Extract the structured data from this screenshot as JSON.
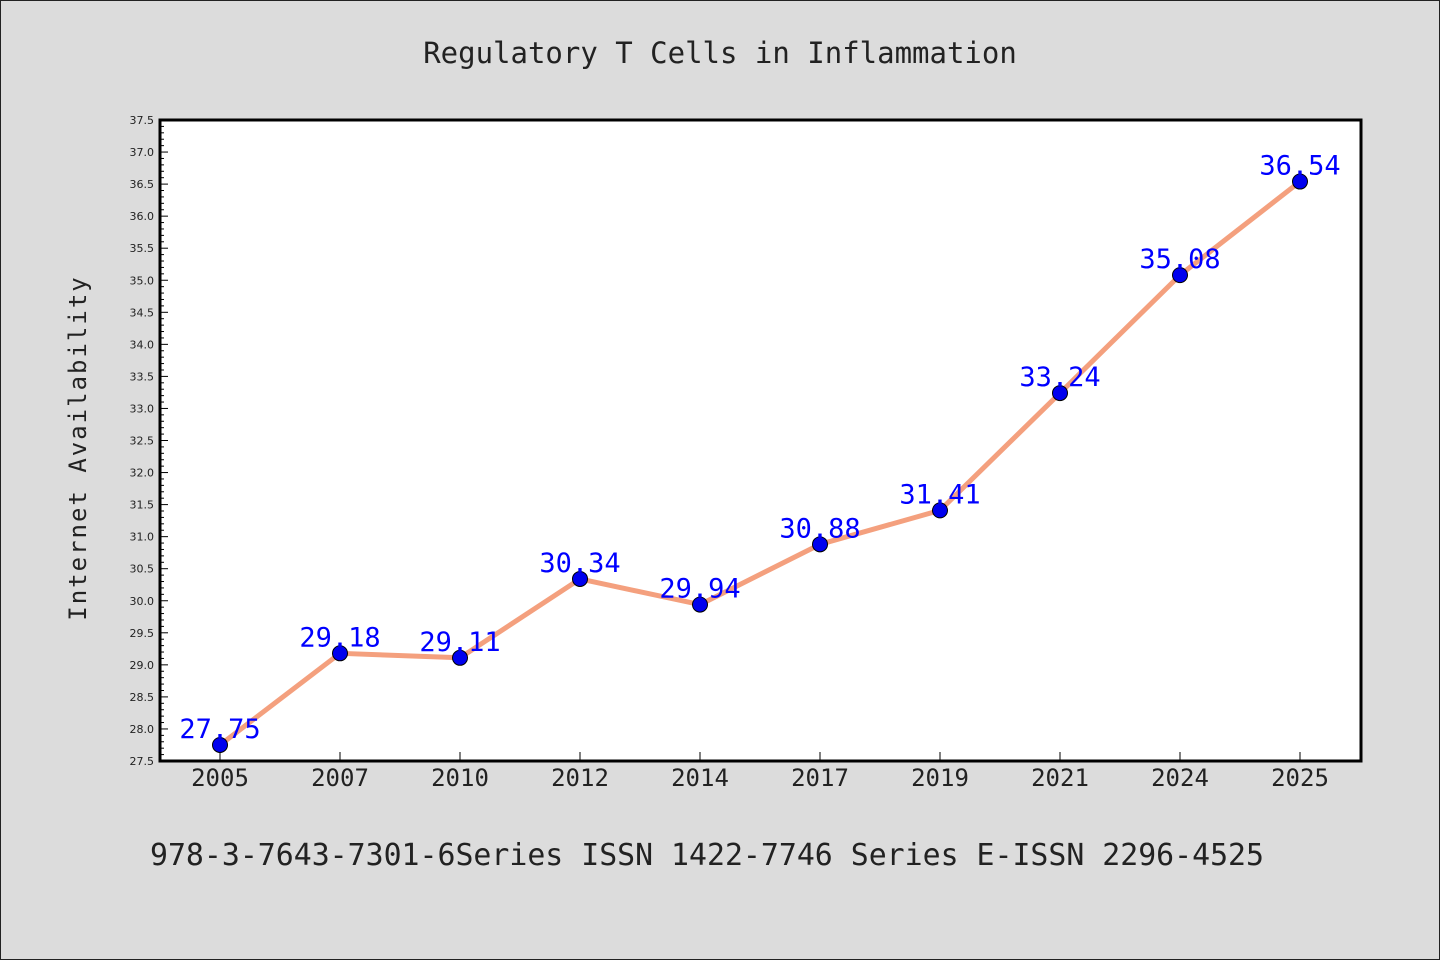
{
  "colors": {
    "background": "#dcdcdc",
    "plot_background": "#ffffff",
    "line": "#f4a07e",
    "marker": "#0000ee",
    "data_label": "#0000ff",
    "text": "#222222"
  },
  "footer_text": "978-3-7643-7301-6Series ISSN 1422-7746 Series E-ISSN 2296-4525",
  "chart_data": {
    "type": "line",
    "title": "Regulatory T Cells in Inflammation",
    "xlabel": "",
    "ylabel": "Internet Availability",
    "categories": [
      "2005",
      "2007",
      "2010",
      "2012",
      "2014",
      "2017",
      "2019",
      "2021",
      "2024",
      "2025"
    ],
    "series": [
      {
        "values": [
          27.75,
          29.18,
          29.11,
          30.34,
          29.94,
          30.88,
          31.41,
          33.24,
          35.08,
          36.54
        ],
        "labels": [
          "27.75",
          "29.18",
          "29.11",
          "30.34",
          "29.94",
          "30.88",
          "31.41",
          "33.24",
          "35.08",
          "36.54"
        ]
      }
    ],
    "ylim": [
      27.5,
      37.5
    ],
    "ytick_step": 0.5,
    "ytick_labels": [
      "27.5",
      "28.0",
      "28.5",
      "29.0",
      "29.5",
      "30.0",
      "30.5",
      "31.0",
      "31.5",
      "32.0",
      "32.5",
      "33.0",
      "33.5",
      "34.0",
      "34.5",
      "35.0",
      "35.5",
      "36.0",
      "36.5",
      "37.0",
      "37.5"
    ],
    "grid": false,
    "legend": "none"
  }
}
